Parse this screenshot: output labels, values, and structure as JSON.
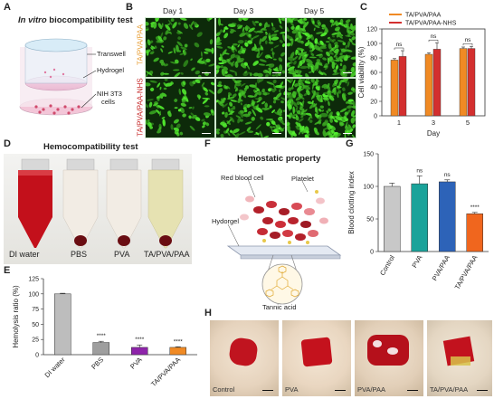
{
  "panel_labels": {
    "A": "A",
    "B": "B",
    "C": "C",
    "D": "D",
    "E": "E",
    "F": "F",
    "G": "G",
    "H": "H"
  },
  "panelA": {
    "title_em": "In vitro",
    "title_rest": " biocompatibility test",
    "labels": [
      "Transwell",
      "Hydrogel",
      "NIH 3T3",
      "cells"
    ]
  },
  "panelB": {
    "days": [
      "Day 1",
      "Day 3",
      "Day 5"
    ],
    "rows": [
      {
        "label": "TA/PVA/PAA",
        "color": "#e8a13a"
      },
      {
        "label": "TA/PVA/PAA-NHS",
        "color": "#c62828"
      }
    ]
  },
  "panelD": {
    "title": "Hemocompatibility test",
    "tubes": [
      "DI water",
      "PBS",
      "PVA",
      "TA/PVA/PAA"
    ]
  },
  "panelF": {
    "title": "Hemostatic property",
    "labels": [
      "Red blood cell",
      "Platelet",
      "Hydorgel",
      "Tannic acid"
    ]
  },
  "panelH": {
    "dishes": [
      "Control",
      "PVA",
      "PVA/PAA",
      "TA/PVA/PAA"
    ]
  },
  "chart_data": [
    {
      "id": "C",
      "type": "bar",
      "categories": [
        "1",
        "3",
        "5"
      ],
      "xlabel": "Day",
      "ylabel": "Cell viability (%)",
      "ylim": [
        0,
        120
      ],
      "yticks": [
        "0",
        "20",
        "40",
        "60",
        "80",
        "100",
        "120"
      ],
      "legend": "top",
      "series": [
        {
          "name": "TA/PVA/PAA",
          "color": "#f08a24",
          "values": [
            77,
            85,
            93
          ],
          "errors": [
            2,
            2,
            2
          ]
        },
        {
          "name": "TA/PVA/PAA-NHS",
          "color": "#d32f2f",
          "values": [
            82,
            92,
            93
          ],
          "errors": [
            8,
            9,
            3
          ]
        }
      ],
      "annotations": [
        "ns",
        "ns",
        "ns"
      ]
    },
    {
      "id": "E",
      "type": "bar",
      "categories": [
        "DI water",
        "PBS",
        "PVA",
        "TA/PVA/PAA"
      ],
      "ylabel": "Hemolysis ratio (%)",
      "ylim": [
        0,
        125
      ],
      "yticks": [
        "0",
        "25",
        "50",
        "75",
        "100",
        "125"
      ],
      "colors": [
        "#bdbdbd",
        "#9e9e9e",
        "#8e24aa",
        "#f08a24"
      ],
      "values": [
        100,
        20,
        12,
        12
      ],
      "errors": [
        1,
        2,
        4,
        1
      ],
      "annotations": [
        "",
        "****",
        "****",
        "****"
      ]
    },
    {
      "id": "G",
      "type": "bar",
      "categories": [
        "Control",
        "PVA",
        "PVA/PAA",
        "TA/PVA/PAA"
      ],
      "ylabel": "Blood clotting index",
      "ylim": [
        0,
        150
      ],
      "yticks": [
        "0",
        "50",
        "100",
        "150"
      ],
      "colors": [
        "#c8c8c8",
        "#1aa39a",
        "#2d63b8",
        "#f0661e"
      ],
      "values": [
        100,
        104,
        107,
        58
      ],
      "errors": [
        5,
        12,
        3,
        2
      ],
      "annotations": [
        "",
        "ns",
        "ns",
        "****"
      ]
    }
  ]
}
